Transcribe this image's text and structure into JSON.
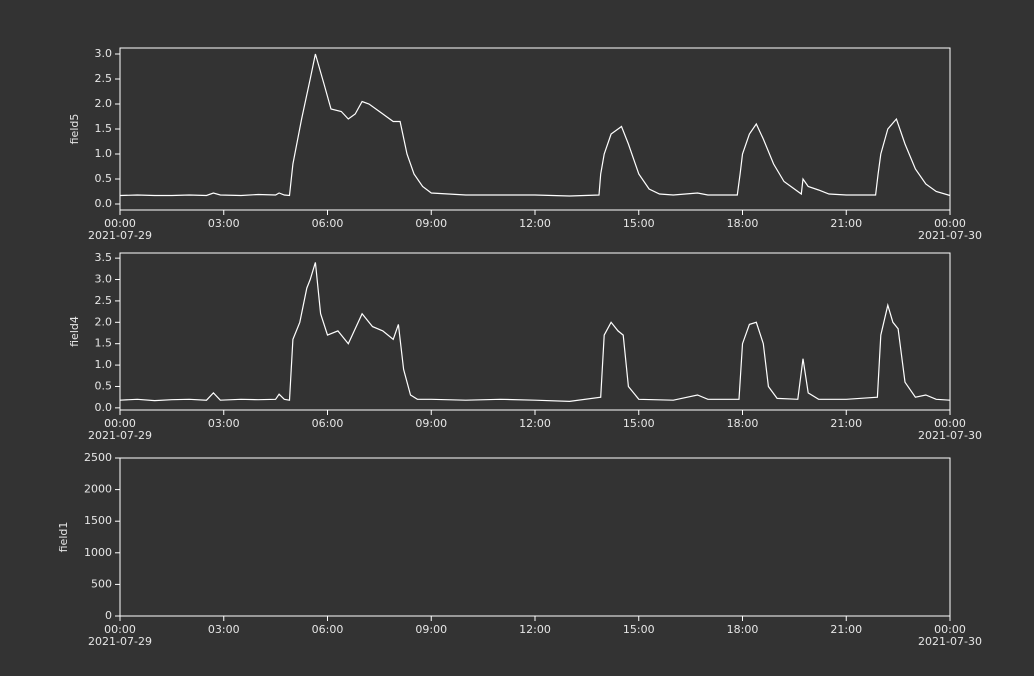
{
  "chart_data": [
    {
      "type": "line",
      "ylabel": "field5",
      "x": [
        0,
        0.5,
        1,
        1.5,
        2,
        2.5,
        2.7,
        2.9,
        3.5,
        4,
        4.5,
        4.6,
        4.75,
        4.9,
        5.0,
        5.25,
        5.5,
        5.65,
        5.9,
        6.1,
        6.4,
        6.6,
        6.8,
        7.0,
        7.2,
        7.5,
        7.7,
        7.9,
        8.1,
        8.3,
        8.5,
        8.75,
        9.0,
        10,
        11,
        12,
        13,
        13.85,
        13.9,
        14.0,
        14.2,
        14.5,
        14.7,
        15.0,
        15.3,
        15.6,
        16,
        16.7,
        17,
        17.85,
        17.93,
        18.0,
        18.2,
        18.4,
        18.6,
        18.9,
        19.2,
        19.5,
        19.7,
        19.75,
        19.9,
        20.2,
        20.5,
        21,
        21.85,
        21.92,
        22.0,
        22.2,
        22.45,
        22.7,
        23.0,
        23.3,
        23.6,
        24
      ],
      "series": [
        {
          "name": "field5",
          "color": "#ffffff",
          "values": [
            0.17,
            0.18,
            0.17,
            0.17,
            0.18,
            0.17,
            0.22,
            0.18,
            0.17,
            0.19,
            0.18,
            0.22,
            0.18,
            0.17,
            0.8,
            1.7,
            2.5,
            3.0,
            2.4,
            1.9,
            1.85,
            1.7,
            1.8,
            2.05,
            2.0,
            1.85,
            1.75,
            1.65,
            1.65,
            1.0,
            0.6,
            0.35,
            0.22,
            0.18,
            0.18,
            0.18,
            0.16,
            0.18,
            0.6,
            1.0,
            1.4,
            1.55,
            1.2,
            0.6,
            0.3,
            0.2,
            0.18,
            0.22,
            0.18,
            0.18,
            0.6,
            1.0,
            1.4,
            1.6,
            1.3,
            0.8,
            0.45,
            0.3,
            0.2,
            0.5,
            0.35,
            0.28,
            0.2,
            0.18,
            0.18,
            0.6,
            1.0,
            1.5,
            1.7,
            1.2,
            0.7,
            0.4,
            0.25,
            0.17
          ]
        }
      ],
      "xlim": [
        0,
        24
      ],
      "xticks": [
        {
          "value": 0,
          "label": "00:00"
        },
        {
          "value": 3,
          "label": "03:00"
        },
        {
          "value": 6,
          "label": "06:00"
        },
        {
          "value": 9,
          "label": "09:00"
        },
        {
          "value": 12,
          "label": "12:00"
        },
        {
          "value": 15,
          "label": "15:00"
        },
        {
          "value": 18,
          "label": "18:00"
        },
        {
          "value": 21,
          "label": "21:00"
        },
        {
          "value": 24,
          "label": "00:00"
        }
      ],
      "xtick_dates": [
        {
          "value": 0,
          "label": "2021-07-29"
        },
        {
          "value": 24,
          "label": "2021-07-30"
        }
      ],
      "ylim": [
        -0.12,
        3.12
      ],
      "yticks": [
        {
          "value": 0,
          "label": "0.0"
        },
        {
          "value": 0.5,
          "label": "0.5"
        },
        {
          "value": 1,
          "label": "1.0"
        },
        {
          "value": 1.5,
          "label": "1.5"
        },
        {
          "value": 2,
          "label": "2.0"
        },
        {
          "value": 2.5,
          "label": "2.5"
        },
        {
          "value": 3,
          "label": "3.0"
        }
      ]
    },
    {
      "type": "line",
      "ylabel": "field4",
      "x": [
        0,
        0.5,
        1,
        1.5,
        2,
        2.5,
        2.7,
        2.9,
        3.5,
        4,
        4.5,
        4.6,
        4.75,
        4.9,
        5.0,
        5.2,
        5.4,
        5.5,
        5.65,
        5.8,
        6.0,
        6.3,
        6.6,
        7.0,
        7.3,
        7.6,
        7.9,
        8.05,
        8.2,
        8.4,
        8.6,
        9,
        10,
        11,
        12,
        13,
        13.9,
        14.0,
        14.2,
        14.4,
        14.55,
        14.7,
        15.0,
        16,
        16.7,
        17,
        17.9,
        18.0,
        18.2,
        18.4,
        18.6,
        18.75,
        19.0,
        19.6,
        19.75,
        19.9,
        20.2,
        21,
        21.9,
        22.0,
        22.2,
        22.35,
        22.5,
        22.7,
        23.0,
        23.3,
        23.6,
        24
      ],
      "series": [
        {
          "name": "field4",
          "color": "#ffffff",
          "values": [
            0.18,
            0.2,
            0.17,
            0.19,
            0.2,
            0.18,
            0.35,
            0.18,
            0.2,
            0.19,
            0.2,
            0.32,
            0.2,
            0.18,
            1.6,
            2.0,
            2.8,
            3.0,
            3.4,
            2.2,
            1.7,
            1.8,
            1.5,
            2.2,
            1.9,
            1.8,
            1.6,
            1.95,
            0.9,
            0.3,
            0.2,
            0.2,
            0.18,
            0.2,
            0.18,
            0.15,
            0.25,
            1.7,
            2.0,
            1.8,
            1.7,
            0.5,
            0.2,
            0.18,
            0.3,
            0.2,
            0.2,
            1.5,
            1.95,
            2.0,
            1.5,
            0.5,
            0.22,
            0.2,
            1.15,
            0.35,
            0.2,
            0.2,
            0.25,
            1.7,
            2.4,
            2.0,
            1.85,
            0.6,
            0.25,
            0.3,
            0.2,
            0.18
          ]
        }
      ],
      "xlim": [
        0,
        24
      ],
      "xticks": [
        {
          "value": 0,
          "label": "00:00"
        },
        {
          "value": 3,
          "label": "03:00"
        },
        {
          "value": 6,
          "label": "06:00"
        },
        {
          "value": 9,
          "label": "09:00"
        },
        {
          "value": 12,
          "label": "12:00"
        },
        {
          "value": 15,
          "label": "15:00"
        },
        {
          "value": 18,
          "label": "18:00"
        },
        {
          "value": 21,
          "label": "21:00"
        },
        {
          "value": 24,
          "label": "00:00"
        }
      ],
      "xtick_dates": [
        {
          "value": 0,
          "label": "2021-07-29"
        },
        {
          "value": 24,
          "label": "2021-07-30"
        }
      ],
      "ylim": [
        -0.05,
        3.62
      ],
      "yticks": [
        {
          "value": 0,
          "label": "0.0"
        },
        {
          "value": 0.5,
          "label": "0.5"
        },
        {
          "value": 1,
          "label": "1.0"
        },
        {
          "value": 1.5,
          "label": "1.5"
        },
        {
          "value": 2,
          "label": "2.0"
        },
        {
          "value": 2.5,
          "label": "2.5"
        },
        {
          "value": 3,
          "label": "3.0"
        },
        {
          "value": 3.5,
          "label": "3.5"
        }
      ]
    },
    {
      "type": "line",
      "ylabel": "field1",
      "x": [],
      "series": [],
      "xlim": [
        0,
        24
      ],
      "xticks": [
        {
          "value": 0,
          "label": "00:00"
        },
        {
          "value": 3,
          "label": "03:00"
        },
        {
          "value": 6,
          "label": "06:00"
        },
        {
          "value": 9,
          "label": "09:00"
        },
        {
          "value": 12,
          "label": "12:00"
        },
        {
          "value": 15,
          "label": "15:00"
        },
        {
          "value": 18,
          "label": "18:00"
        },
        {
          "value": 21,
          "label": "21:00"
        },
        {
          "value": 24,
          "label": "00:00"
        }
      ],
      "xtick_dates": [
        {
          "value": 0,
          "label": "2021-07-29"
        },
        {
          "value": 24,
          "label": "2021-07-30"
        }
      ],
      "ylim": [
        0,
        2500
      ],
      "yticks": [
        0,
        500,
        1000,
        1500,
        2000,
        2500
      ]
    }
  ]
}
